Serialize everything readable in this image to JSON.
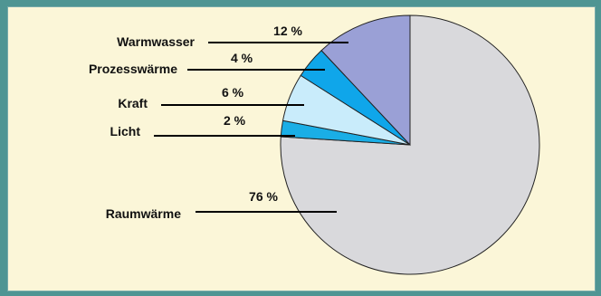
{
  "chart_data": {
    "type": "pie",
    "title": "",
    "start_angle_deg": 0,
    "direction": "clockwise",
    "slices": [
      {
        "name": "Raumwärme",
        "value": 76,
        "label": "76 %",
        "color": "#d9d9dc"
      },
      {
        "name": "Licht",
        "value": 2,
        "label": "2 %",
        "color": "#1aaee6"
      },
      {
        "name": "Kraft",
        "value": 6,
        "label": "6 %",
        "color": "#c9ecfb"
      },
      {
        "name": "Prozesswärme",
        "value": 4,
        "label": "4 %",
        "color": "#0fa6ea"
      },
      {
        "name": "Warmwasser",
        "value": 12,
        "label": "12 %",
        "color": "#9aa0d6"
      }
    ]
  }
}
